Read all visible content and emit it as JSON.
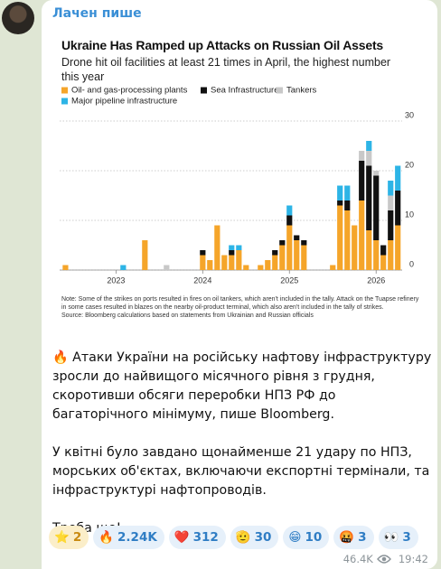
{
  "channel": {
    "name": "Лачен пише"
  },
  "chart_data": {
    "type": "stacked-bar",
    "title": "Ukraine Has Ramped up Attacks on Russian Oil Assets",
    "subtitle": "Drone hit oil facilities at least 21 times in April, the highest number this year",
    "x": [
      2022.417,
      2023.083,
      2023.333,
      2023.583,
      2024,
      2024.083,
      2024.167,
      2024.25,
      2024.333,
      2024.417,
      2024.5,
      2024.667,
      2024.75,
      2024.833,
      2024.917,
      2025,
      2025.083,
      2025.167,
      2025.5,
      2025.583,
      2025.667,
      2025.75,
      2025.833,
      2025.917,
      2026,
      2026.083,
      2026.167,
      2026.25
    ],
    "series": [
      {
        "name": "Oil- and gas-processing plants",
        "color": "#f5a52a",
        "values": [
          1,
          0,
          6,
          0,
          3,
          2,
          9,
          3,
          3,
          4,
          1,
          1,
          2,
          3,
          5,
          9,
          6,
          5,
          1,
          13,
          12,
          9,
          14,
          8,
          6,
          3,
          6,
          9
        ]
      },
      {
        "name": "Sea Infrastructure",
        "color": "#111111",
        "values": [
          0,
          0,
          0,
          0,
          1,
          0,
          0,
          0,
          1,
          0,
          0,
          0,
          0,
          1,
          1,
          2,
          1,
          1,
          0,
          1,
          2,
          0,
          8,
          13,
          13,
          2,
          6,
          7
        ]
      },
      {
        "name": "Tankers",
        "color": "#c8c8c8",
        "values": [
          0,
          0,
          0,
          1,
          0,
          0,
          0,
          0,
          0,
          0,
          0,
          0,
          0,
          0,
          0,
          0,
          0,
          0,
          0,
          0,
          0,
          0,
          2,
          3,
          1,
          0,
          3,
          0
        ]
      },
      {
        "name": "Major pipeline infrastructure",
        "color": "#2db4e6",
        "values": [
          0,
          1,
          0,
          0,
          0,
          0,
          0,
          0,
          1,
          1,
          0,
          0,
          0,
          0,
          0,
          2,
          0,
          0,
          0,
          3,
          3,
          0,
          0,
          2,
          0,
          0,
          3,
          5
        ]
      }
    ],
    "xlim": [
      2022.35,
      2026.3
    ],
    "xticks": [
      2023,
      2024,
      2025,
      2026
    ],
    "ylim": [
      0,
      30
    ],
    "yticks": [
      0,
      10,
      20,
      30
    ],
    "grid": true,
    "notes": [
      "Note: Some of the strikes on ports resulted in fires on oil tankers, which aren't included in the tally. Attack on the Tuapse refinery in some cases resulted in blazes on the nearby oil-product terminal, which also aren't included in the tally of strikes.",
      "Source: Bloomberg calculations based on statements from Ukrainian and Russian officials"
    ]
  },
  "post": {
    "paragraphs": [
      "🔥 Атаки України на російську нафтову інфраструктуру зросли до найвищого місячного рівня з грудня, скоротивши обсяги переробки НПЗ РФ до багаторічного мінімуму, пише Bloomberg.",
      "У квітні було завдано щонайменше 21 удару по НПЗ, морських об'єктах, включаючи експортні термінали, та інфраструктурі нафтопроводів.",
      "Треба ще!"
    ]
  },
  "reactions": [
    {
      "emoji": "⭐",
      "count": "2"
    },
    {
      "emoji": "🔥",
      "count": "2.24K"
    },
    {
      "emoji": "❤️",
      "count": "312"
    },
    {
      "emoji": "🫡",
      "count": "30"
    },
    {
      "emoji": "😁",
      "count": "10"
    },
    {
      "emoji": "🤬",
      "count": "3"
    },
    {
      "emoji": "👀",
      "count": "3"
    }
  ],
  "meta": {
    "views": "46.4K",
    "time": "19:42"
  }
}
